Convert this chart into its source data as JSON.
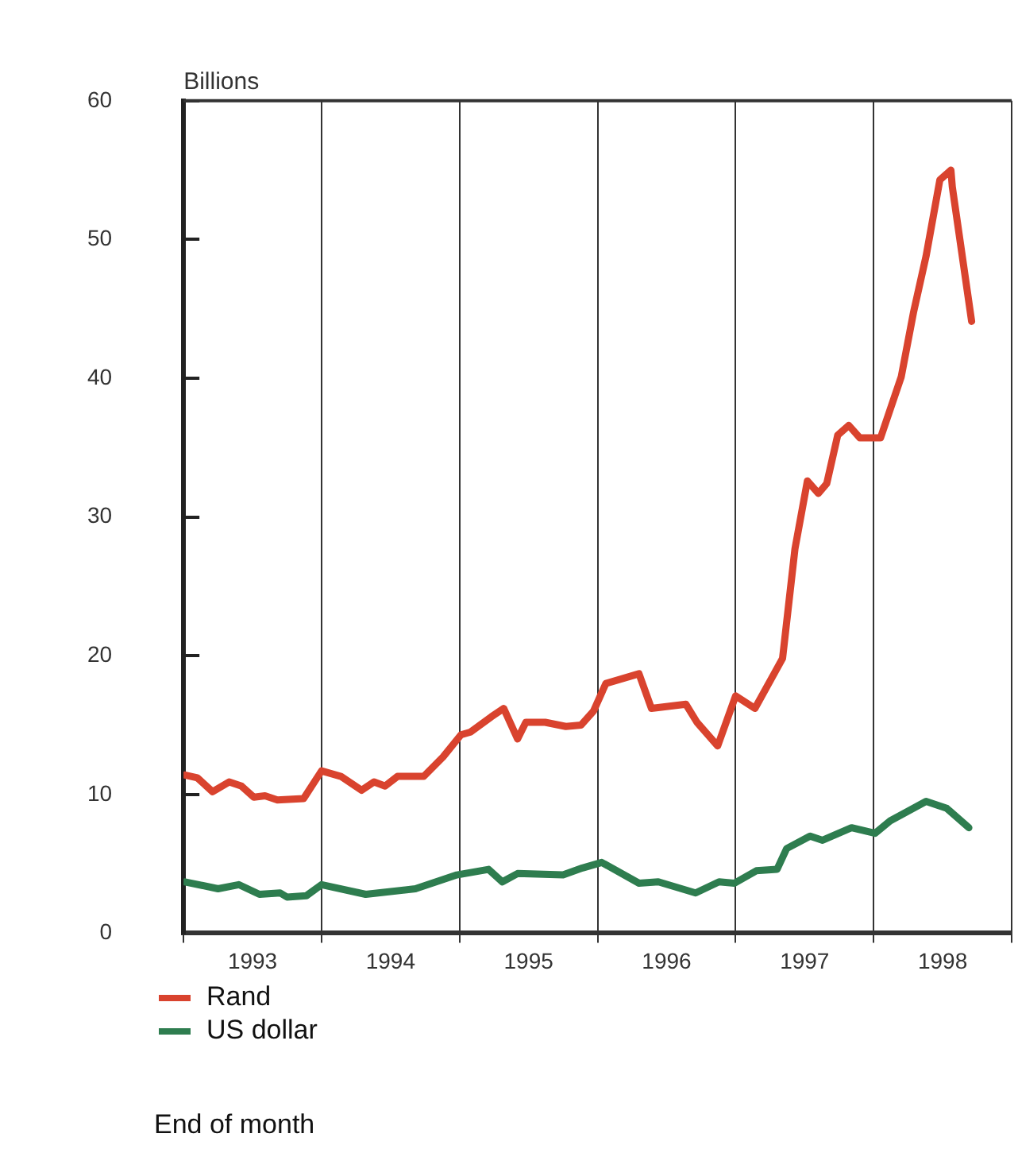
{
  "chart_data": {
    "type": "line",
    "ylabel": "Billions",
    "annotations": [
      "End of month"
    ],
    "xlim": [
      1993,
      1999
    ],
    "xticks": [
      {
        "value": 1993,
        "label": null
      },
      {
        "value": 1993.5,
        "label": "1993"
      },
      {
        "value": 1994,
        "label": null
      },
      {
        "value": 1994.5,
        "label": "1994"
      },
      {
        "value": 1995,
        "label": null
      },
      {
        "value": 1995.5,
        "label": "1995"
      },
      {
        "value": 1996,
        "label": null
      },
      {
        "value": 1996.5,
        "label": "1996"
      },
      {
        "value": 1997,
        "label": null
      },
      {
        "value": 1997.5,
        "label": "1997"
      },
      {
        "value": 1998,
        "label": null
      },
      {
        "value": 1998.5,
        "label": "1998"
      },
      {
        "value": 1999,
        "label": null
      }
    ],
    "ylim": [
      0,
      60
    ],
    "yticks": [
      0,
      10,
      20,
      30,
      40,
      50,
      60
    ],
    "grid": "x",
    "legend": "bottom left",
    "marker": "none",
    "line_style": "solid",
    "series": [
      {
        "name": "Rand",
        "color": "#d9432e",
        "x": [
          1993.01,
          1993.1,
          1993.21,
          1993.33,
          1993.42,
          1993.51,
          1993.59,
          1993.68,
          1993.87,
          1994.0,
          1994.14,
          1994.29,
          1994.38,
          1994.46,
          1994.55,
          1994.74,
          1994.88,
          1995.01,
          1995.08,
          1995.23,
          1995.32,
          1995.42,
          1995.48,
          1995.62,
          1995.77,
          1995.88,
          1995.97,
          1996.06,
          1996.3,
          1996.39,
          1996.64,
          1996.72,
          1996.87,
          1997.0,
          1997.14,
          1997.29,
          1997.34,
          1997.43,
          1997.52,
          1997.6,
          1997.66,
          1997.74,
          1997.82,
          1997.9,
          1998.05,
          1998.2,
          1998.29,
          1998.38,
          1998.48,
          1998.56,
          1998.57,
          1998.71
        ],
        "values": [
          11.4,
          11.2,
          10.2,
          10.9,
          10.6,
          9.8,
          9.9,
          9.6,
          9.7,
          11.7,
          11.3,
          10.3,
          10.9,
          10.6,
          11.3,
          11.3,
          12.7,
          14.3,
          14.5,
          15.6,
          16.2,
          14.0,
          15.2,
          15.2,
          14.9,
          15.0,
          16.0,
          18.0,
          18.7,
          16.2,
          16.5,
          15.2,
          13.5,
          17.1,
          16.2,
          18.9,
          19.8,
          27.7,
          32.6,
          31.7,
          32.4,
          35.9,
          36.6,
          35.7,
          35.7,
          40.1,
          44.8,
          48.8,
          54.3,
          55.0,
          53.8,
          44.1
        ]
      },
      {
        "name": "US dollar",
        "color": "#2e7d4f",
        "x": [
          1993.01,
          1993.25,
          1993.4,
          1993.55,
          1993.7,
          1993.75,
          1993.89,
          1994.0,
          1994.32,
          1994.68,
          1994.98,
          1995.21,
          1995.31,
          1995.42,
          1995.75,
          1995.89,
          1996.03,
          1996.3,
          1996.44,
          1996.71,
          1996.88,
          1996.99,
          1997.15,
          1997.3,
          1997.37,
          1997.54,
          1997.63,
          1997.84,
          1998.01,
          1998.12,
          1998.38,
          1998.53,
          1998.69
        ],
        "values": [
          3.7,
          3.2,
          3.5,
          2.8,
          2.9,
          2.6,
          2.7,
          3.5,
          2.8,
          3.2,
          4.2,
          4.6,
          3.7,
          4.3,
          4.2,
          4.7,
          5.1,
          3.6,
          3.7,
          2.9,
          3.7,
          3.6,
          4.5,
          4.6,
          6.1,
          7.0,
          6.7,
          7.6,
          7.2,
          8.1,
          9.5,
          9.0,
          7.6
        ]
      }
    ]
  }
}
